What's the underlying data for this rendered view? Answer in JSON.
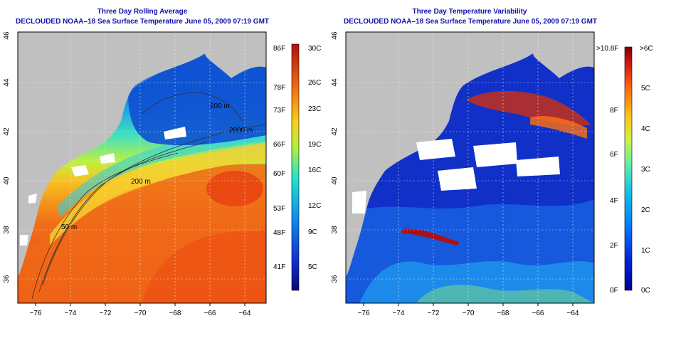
{
  "left": {
    "title1": "Three Day Rolling Average",
    "title2": "DECLOUDED NOAA–18 Sea Surface Temperature June 05, 2009 07:19 GMT",
    "x_ticks": [
      "−76",
      "−74",
      "−72",
      "−70",
      "−68",
      "−66",
      "−64"
    ],
    "y_ticks": [
      "36",
      "38",
      "40",
      "42",
      "44",
      "46"
    ],
    "contours": [
      "200 m",
      "2000 m",
      "200 m",
      "50 m"
    ],
    "colorbar_f": [
      "86F",
      "78F",
      "73F",
      "66F",
      "60F",
      "53F",
      "48F",
      "41F"
    ],
    "colorbar_c": [
      "30C",
      "26C",
      "23C",
      "19C",
      "16C",
      "12C",
      "9C",
      "5C"
    ]
  },
  "right": {
    "title1": "Three Day Temperature Variability",
    "title2": "DECLOUDED NOAA–18 Sea Surface Temperature June 05, 2009 07:19 GMT",
    "x_ticks": [
      "−76",
      "−74",
      "−72",
      "−70",
      "−68",
      "−66",
      "−64"
    ],
    "y_ticks": [
      "36",
      "38",
      "40",
      "42",
      "44",
      "46"
    ],
    "colorbar_f": [
      ">10.8F",
      "8F",
      "6F",
      "4F",
      "2F",
      "0F"
    ],
    "colorbar_c": [
      ">6C",
      "5C",
      "4C",
      "3C",
      "2C",
      "1C",
      "0C"
    ]
  },
  "colors": {
    "land": "#c0c0c0",
    "title": "#1010b0",
    "sst_scale": [
      "#08087a",
      "#1030d0",
      "#1070f0",
      "#10b0f0",
      "#20e0d0",
      "#70f080",
      "#d0f040",
      "#f8d020",
      "#f89020",
      "#f05010",
      "#c01010"
    ],
    "var_scale": [
      "#000090",
      "#0020e0",
      "#0070ff",
      "#10c0f0",
      "#60f0a0",
      "#d0f040",
      "#ffc010",
      "#ff6010",
      "#d01010",
      "#800000"
    ]
  }
}
